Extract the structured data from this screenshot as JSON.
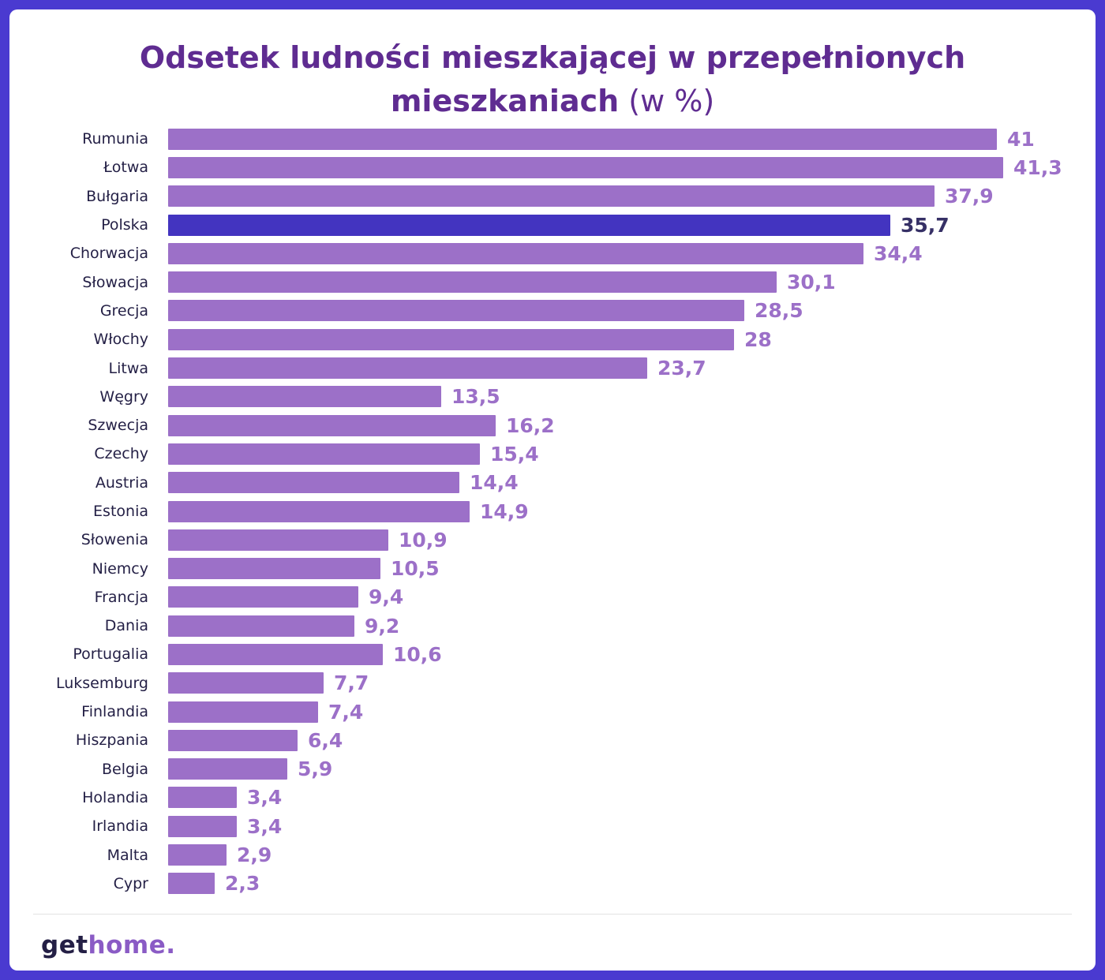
{
  "frame_color": "#4a3ad0",
  "title": {
    "line1": "Odsetek ludności mieszkającej w przepełnionych",
    "line2_bold": "mieszkaniach",
    "line2_normal": " (w %)",
    "color": "#5f2c91"
  },
  "chart_data": {
    "type": "bar",
    "orientation": "horizontal",
    "title": "Odsetek ludności mieszkającej w przepełnionych mieszkaniach (w %)",
    "unit": "%",
    "max_value": 41.3,
    "grid": false,
    "legend": false,
    "bar_color": "#9c70c8",
    "highlight_bar_color": "#4334c0",
    "value_label_color": "#9c70c8",
    "highlight_value_label_color": "#363066",
    "category_label_color": "#231f45",
    "highlight_category": "Polska",
    "categories": [
      "Rumunia",
      "Łotwa",
      "Bułgaria",
      "Polska",
      "Chorwacja",
      "Słowacja",
      "Grecja",
      "Włochy",
      "Litwa",
      "Węgry",
      "Szwecja",
      "Czechy",
      "Austria",
      "Estonia",
      "Słowenia",
      "Niemcy",
      "Francja",
      "Dania",
      "Portugalia",
      "Luksemburg",
      "Finlandia",
      "Hiszpania",
      "Belgia",
      "Holandia",
      "Irlandia",
      "Malta",
      "Cypr"
    ],
    "values": [
      41,
      41.3,
      37.9,
      35.7,
      34.4,
      30.1,
      28.5,
      28,
      23.7,
      13.5,
      16.2,
      15.4,
      14.4,
      14.9,
      10.9,
      10.5,
      9.4,
      9.2,
      10.6,
      7.7,
      7.4,
      6.4,
      5.9,
      3.4,
      3.4,
      2.9,
      2.3
    ],
    "value_labels": [
      "41",
      "41,3",
      "37,9",
      "35,7",
      "34,4",
      "30,1",
      "28,5",
      "28",
      "23,7",
      "13,5",
      "16,2",
      "15,4",
      "14,4",
      "14,9",
      "10,9",
      "10,5",
      "9,4",
      "9,2",
      "10,6",
      "7,7",
      "7,4",
      "6,4",
      "5,9",
      "3,4",
      "3,4",
      "2,9",
      "2,3"
    ]
  },
  "footer": {
    "logo_get": "get",
    "logo_home": "home.",
    "logo_get_color": "#241f45",
    "logo_home_color": "#8a5bc5"
  }
}
